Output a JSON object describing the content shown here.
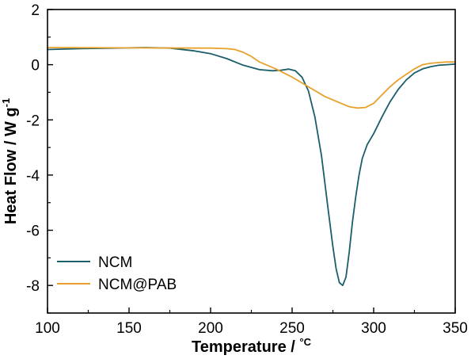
{
  "chart_data": {
    "type": "line",
    "title": "",
    "xlabel": "Temperature / ",
    "xlabel_unit": "°C",
    "ylabel_main": "Heat Flow / W g",
    "ylabel_exp": "-1",
    "xlim": [
      100,
      350
    ],
    "ylim": [
      -9,
      2
    ],
    "xticks": [
      100,
      150,
      200,
      250,
      300,
      350
    ],
    "yticks": [
      2,
      0,
      -2,
      -4,
      -6,
      -8
    ],
    "legend_position": "lower-left",
    "series": [
      {
        "name": "NCM",
        "color": "#1a5e6a",
        "x": [
          100,
          120,
          140,
          160,
          175,
          190,
          200,
          210,
          220,
          230,
          238,
          243,
          248,
          252,
          256,
          260,
          264,
          268,
          272,
          275,
          277,
          279,
          281,
          283,
          285,
          287,
          289,
          291,
          293,
          296,
          300,
          305,
          310,
          315,
          320,
          325,
          330,
          335,
          340,
          345,
          350
        ],
        "y": [
          0.55,
          0.58,
          0.6,
          0.62,
          0.6,
          0.5,
          0.4,
          0.22,
          -0.02,
          -0.18,
          -0.22,
          -0.2,
          -0.16,
          -0.22,
          -0.45,
          -0.95,
          -1.9,
          -3.3,
          -5.2,
          -6.6,
          -7.4,
          -7.9,
          -8.0,
          -7.7,
          -6.8,
          -5.7,
          -4.8,
          -4.0,
          -3.4,
          -2.9,
          -2.5,
          -1.9,
          -1.35,
          -0.9,
          -0.55,
          -0.3,
          -0.15,
          -0.07,
          -0.02,
          0.0,
          0.02
        ]
      },
      {
        "name": "NCM@PAB",
        "color": "#e8a12c",
        "x": [
          100,
          150,
          200,
          210,
          215,
          220,
          225,
          230,
          240,
          250,
          260,
          270,
          280,
          285,
          290,
          295,
          300,
          305,
          310,
          315,
          320,
          325,
          330,
          335,
          340,
          345,
          350
        ],
        "y": [
          0.62,
          0.61,
          0.6,
          0.58,
          0.55,
          0.45,
          0.3,
          0.1,
          -0.15,
          -0.45,
          -0.8,
          -1.15,
          -1.4,
          -1.52,
          -1.57,
          -1.55,
          -1.4,
          -1.1,
          -0.8,
          -0.55,
          -0.35,
          -0.15,
          0.0,
          0.05,
          0.08,
          0.1,
          0.1
        ]
      }
    ]
  }
}
